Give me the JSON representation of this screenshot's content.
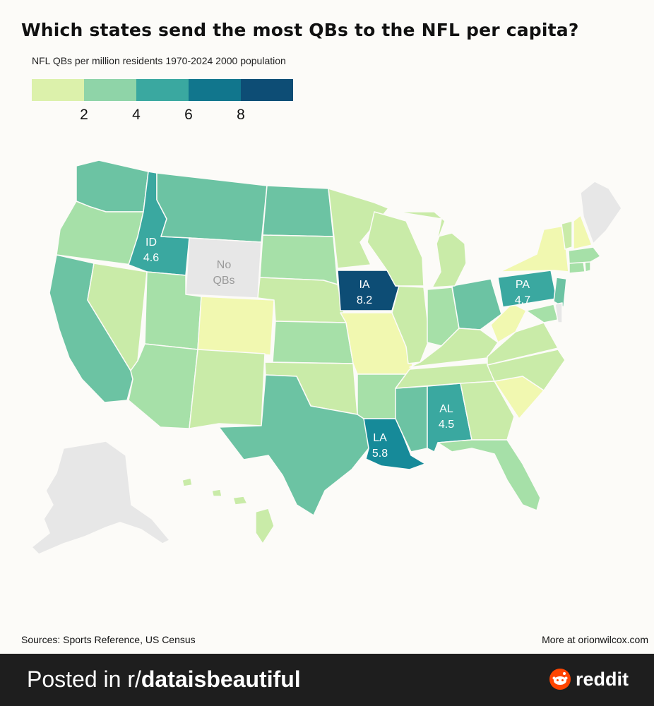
{
  "title": "Which states send the most QBs to the NFL per capita?",
  "subtitle": "NFL QBs per million residents 1970-2024 2000 population",
  "legend": {
    "colors": [
      "#dcf1ab",
      "#8fd4a8",
      "#3aa8a0",
      "#11768d",
      "#0d4d75"
    ],
    "ticks": [
      "2",
      "4",
      "6",
      "8"
    ],
    "range": [
      0,
      10
    ]
  },
  "labels": {
    "ID": {
      "abbr": "ID",
      "value": "4.6"
    },
    "WY": {
      "line1": "No",
      "line2": "QBs"
    },
    "IA": {
      "abbr": "IA",
      "value": "8.2"
    },
    "PA": {
      "abbr": "PA",
      "value": "4.7"
    },
    "AL": {
      "abbr": "AL",
      "value": "4.5"
    },
    "LA": {
      "abbr": "LA",
      "value": "5.8"
    }
  },
  "colors": {
    "no_data": "#e7e7e7",
    "pale_yellow": "#f1f8b0",
    "light_green": "#c9eba8",
    "mint": "#a6e0a8",
    "green_teal": "#6cc3a3",
    "teal": "#3aa8a0",
    "dark_teal": "#168a99",
    "navy": "#0d4d75"
  },
  "footer": {
    "sources": "Sources: Sports Reference, US Census",
    "more": "More at orionwilcox.com",
    "posted_prefix": "Posted in r/",
    "posted_sub": "dataisbeautiful",
    "brand": "reddit"
  }
}
